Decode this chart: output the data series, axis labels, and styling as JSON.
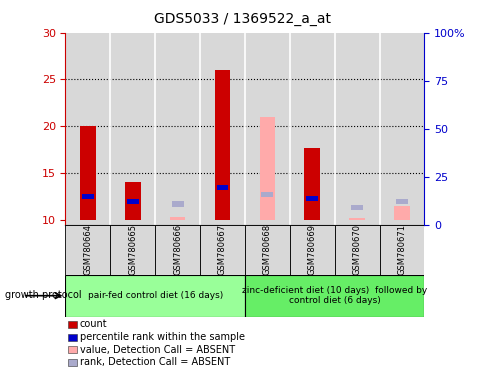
{
  "title": "GDS5033 / 1369522_a_at",
  "samples": [
    "GSM780664",
    "GSM780665",
    "GSM780666",
    "GSM780667",
    "GSM780668",
    "GSM780669",
    "GSM780670",
    "GSM780671"
  ],
  "ylim_left": [
    9.5,
    30
  ],
  "ylim_right": [
    0,
    100
  ],
  "yticks_left": [
    10,
    15,
    20,
    25,
    30
  ],
  "yticks_right": [
    0,
    25,
    50,
    75,
    100
  ],
  "ytick_labels_right": [
    "0",
    "25",
    "50",
    "75",
    "100%"
  ],
  "count_values": [
    20.0,
    14.0,
    null,
    26.0,
    null,
    17.7,
    null,
    null
  ],
  "count_base": 10,
  "percentile_values": [
    12.5,
    12.0,
    null,
    13.5,
    null,
    12.3,
    null,
    null
  ],
  "absent_value_values": [
    null,
    null,
    10.3,
    null,
    21.0,
    null,
    10.2,
    11.5
  ],
  "absent_rank_values": [
    null,
    null,
    11.7,
    null,
    12.7,
    null,
    11.3,
    12.0
  ],
  "bar_width": 0.35,
  "red_color": "#cc0000",
  "blue_color": "#0000cc",
  "pink_color": "#ffaaaa",
  "lightblue_color": "#aaaacc",
  "group1_color": "#99ff99",
  "group2_color": "#66ee66",
  "group1_label": "pair-fed control diet (16 days)",
  "group2_label": "zinc-deficient diet (10 days)  followed by\ncontrol diet (6 days)",
  "growth_protocol_label": "growth protocol",
  "legend_items": [
    {
      "color": "#cc0000",
      "label": "count"
    },
    {
      "color": "#0000cc",
      "label": "percentile rank within the sample"
    },
    {
      "color": "#ffaaaa",
      "label": "value, Detection Call = ABSENT"
    },
    {
      "color": "#aaaacc",
      "label": "rank, Detection Call = ABSENT"
    }
  ],
  "dotted_line_color": "black",
  "axis_color_left": "#cc0000",
  "axis_color_right": "#0000cc",
  "background_color": "#ffffff",
  "plot_area_color": "#d8d8d8",
  "sample_box_color": "#d8d8d8"
}
